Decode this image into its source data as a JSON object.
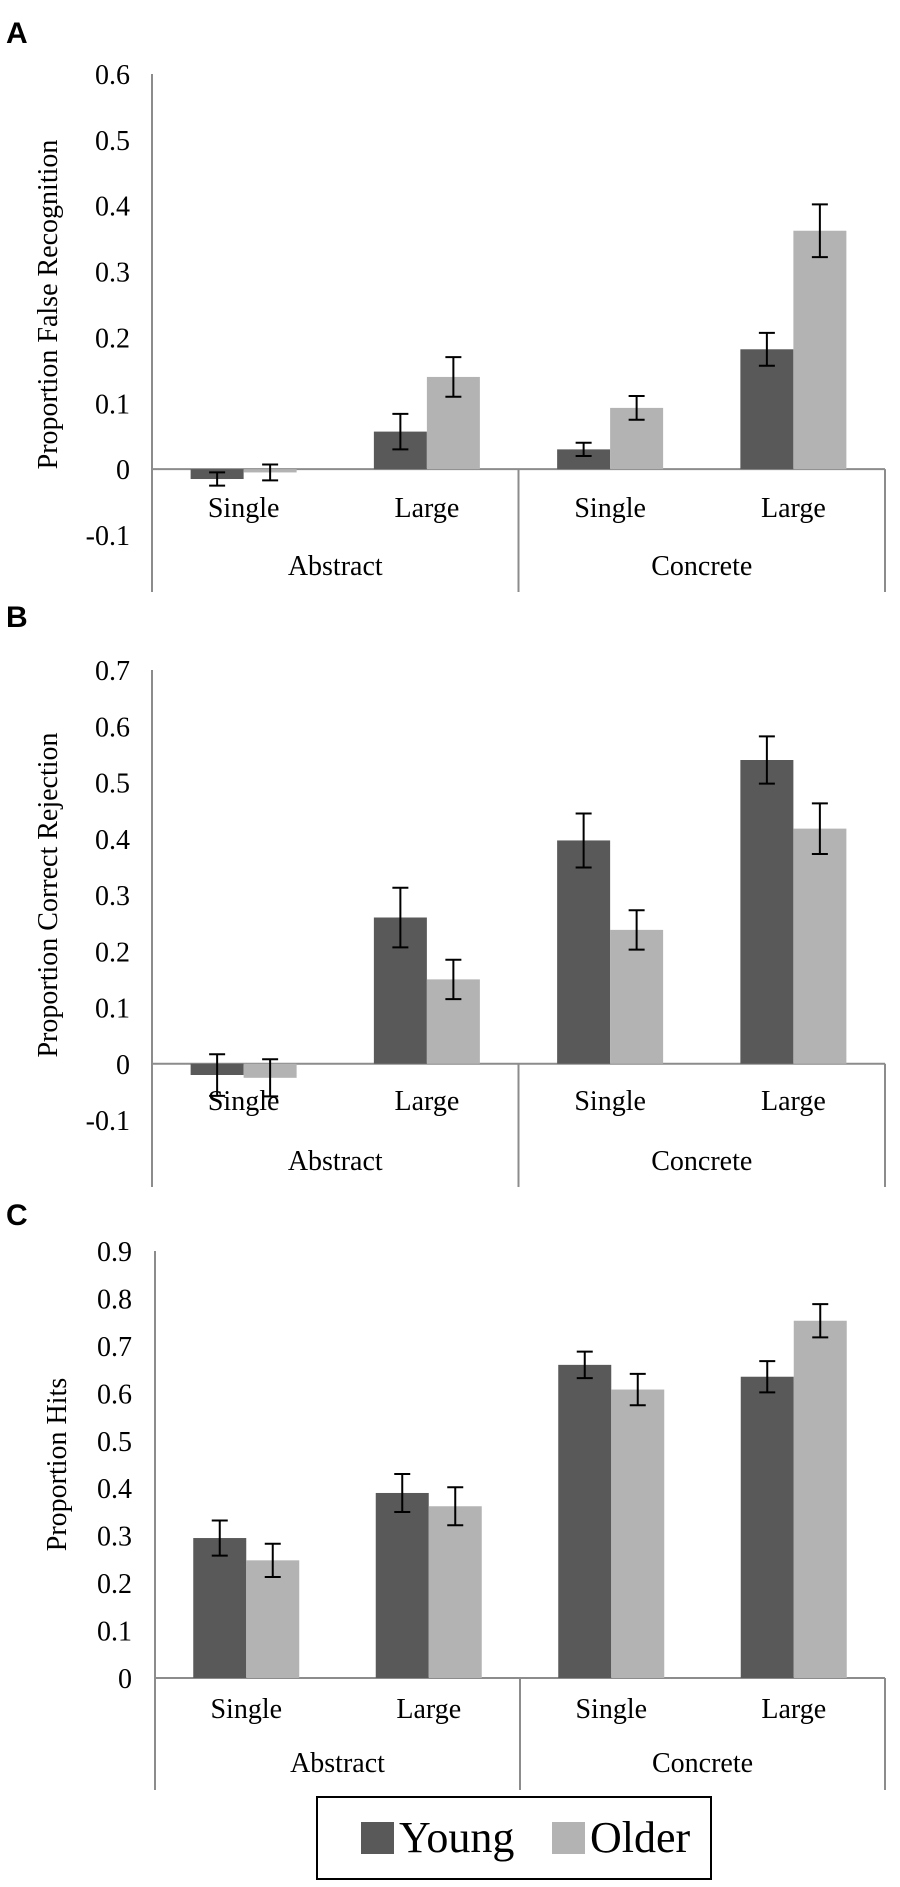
{
  "figure": {
    "colors": {
      "young": "#595959",
      "older": "#b3b3b3",
      "axis": "#8c8c8c",
      "error_bar": "#000000"
    }
  },
  "chart_data": [
    {
      "panel": "A",
      "type": "bar",
      "ylabel": "Proportion False Recognition",
      "ylim": [
        -0.1,
        0.6
      ],
      "yticks": [
        -0.1,
        0,
        0.1,
        0.2,
        0.3,
        0.4,
        0.5,
        0.6
      ],
      "ytick_labels": [
        "-0.1",
        "0",
        "0.1",
        "0.2",
        "0.3",
        "0.4",
        "0.5",
        "0.6"
      ],
      "groups": [
        "Abstract",
        "Concrete"
      ],
      "categories": [
        "Single",
        "Large",
        "Single",
        "Large"
      ],
      "series": [
        {
          "name": "Young",
          "values": [
            -0.015,
            0.057,
            0.03,
            0.182
          ],
          "errors": [
            0.01,
            0.027,
            0.01,
            0.025
          ]
        },
        {
          "name": "Older",
          "values": [
            -0.005,
            0.14,
            0.093,
            0.362
          ],
          "errors": [
            0.012,
            0.03,
            0.018,
            0.04
          ]
        }
      ]
    },
    {
      "panel": "B",
      "type": "bar",
      "ylabel": "Proportion Correct Rejection",
      "ylim": [
        -0.1,
        0.7
      ],
      "yticks": [
        -0.1,
        0,
        0.1,
        0.2,
        0.3,
        0.4,
        0.5,
        0.6,
        0.7
      ],
      "ytick_labels": [
        "-0.1",
        "0",
        "0.1",
        "0.2",
        "0.3",
        "0.4",
        "0.5",
        "0.6",
        "0.7"
      ],
      "groups": [
        "Abstract",
        "Concrete"
      ],
      "categories": [
        "Single",
        "Large",
        "Single",
        "Large"
      ],
      "series": [
        {
          "name": "Young",
          "values": [
            -0.02,
            0.26,
            0.397,
            0.54
          ],
          "errors": [
            0.037,
            0.053,
            0.048,
            0.042
          ]
        },
        {
          "name": "Older",
          "values": [
            -0.025,
            0.15,
            0.238,
            0.418
          ],
          "errors": [
            0.033,
            0.035,
            0.035,
            0.045
          ]
        }
      ]
    },
    {
      "panel": "C",
      "type": "bar",
      "ylabel": "Proportion Hits",
      "ylim": [
        0,
        0.9
      ],
      "yticks": [
        0,
        0.1,
        0.2,
        0.3,
        0.4,
        0.5,
        0.6,
        0.7,
        0.8,
        0.9
      ],
      "ytick_labels": [
        "0",
        "0.1",
        "0.2",
        "0.3",
        "0.4",
        "0.5",
        "0.6",
        "0.7",
        "0.8",
        "0.9"
      ],
      "groups": [
        "Abstract",
        "Concrete"
      ],
      "categories": [
        "Single",
        "Large",
        "Single",
        "Large"
      ],
      "series": [
        {
          "name": "Young",
          "values": [
            0.295,
            0.39,
            0.66,
            0.635
          ],
          "errors": [
            0.037,
            0.04,
            0.028,
            0.033
          ]
        },
        {
          "name": "Older",
          "values": [
            0.248,
            0.362,
            0.608,
            0.753
          ],
          "errors": [
            0.035,
            0.04,
            0.033,
            0.035
          ]
        }
      ]
    }
  ],
  "legend": {
    "items": [
      "Young",
      "Older"
    ]
  }
}
